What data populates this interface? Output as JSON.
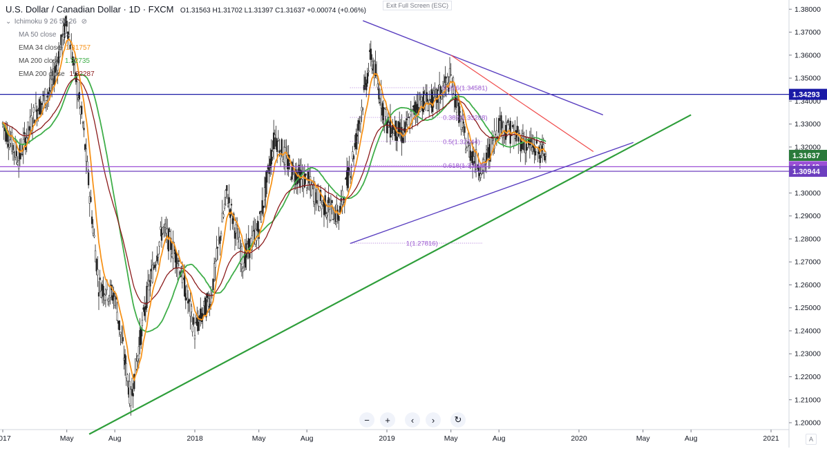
{
  "header": {
    "title": "U.S. Dollar / Canadian Dollar · 1D · FXCM",
    "ohlc": "O1.31563 H1.31702 L1.31397 C1.31637 +0.00074 (+0.06%)"
  },
  "indicators": {
    "ichimoku": "Ichimoku 9 26 52 26",
    "ma50": {
      "label": "MA  50 close",
      "value": ""
    },
    "ema34": {
      "label": "EMA 34 close",
      "value": "1.31757"
    },
    "ma200": {
      "label": "MA  200 close",
      "value": "1.32735"
    },
    "ema200": {
      "label": "EMA 200 close",
      "value": "1.32287"
    }
  },
  "exit_fullscreen": "Exit Full Screen (ESC)",
  "nav_buttons": {
    "zoom_out": "−",
    "zoom_in": "+",
    "back": "‹",
    "forward": "›",
    "reset": "↻"
  },
  "auto_label": "A",
  "colors": {
    "ema34": "#f7931a",
    "ma200": "#3fae49",
    "ema200": "#8b1a1a",
    "candle": "#222222",
    "fib": "#9b59d0",
    "trend_purple": "#5a3fc0",
    "trend_green": "#2e9e3a",
    "trend_red": "#f04a4a",
    "hline_blue": "#1a1aa6",
    "hline_purple": "#9b4fd6",
    "price_green": "#2a7a3a",
    "price_purple": "#6d3fbf"
  },
  "chart_data": {
    "type": "candlestick",
    "symbol": "USDCAD",
    "x_ticks": [
      "2017",
      "May",
      "Aug",
      "2018",
      "May",
      "Aug",
      "2019",
      "May",
      "Aug",
      "2020",
      "May",
      "Aug",
      "2021"
    ],
    "y_ticks": [
      "1.20000",
      "1.21000",
      "1.22000",
      "1.23000",
      "1.24000",
      "1.25000",
      "1.26000",
      "1.27000",
      "1.28000",
      "1.29000",
      "1.30000",
      "1.31000",
      "1.32000",
      "1.33000",
      "1.34000",
      "1.35000",
      "1.36000",
      "1.37000",
      "1.38000"
    ],
    "ylim": [
      1.197,
      1.384
    ],
    "price_path": [
      [
        "2017-01",
        1.33
      ],
      [
        "2017-02",
        1.315
      ],
      [
        "2017-03",
        1.335
      ],
      [
        "2017-04",
        1.345
      ],
      [
        "2017-05",
        1.375
      ],
      [
        "2017-06",
        1.33
      ],
      [
        "2017-07",
        1.26
      ],
      [
        "2017-08",
        1.255
      ],
      [
        "2017-09",
        1.21
      ],
      [
        "2017-10",
        1.255
      ],
      [
        "2017-11",
        1.285
      ],
      [
        "2017-12",
        1.27
      ],
      [
        "2018-01",
        1.24
      ],
      [
        "2018-02",
        1.255
      ],
      [
        "2018-03",
        1.3
      ],
      [
        "2018-04",
        1.27
      ],
      [
        "2018-05",
        1.285
      ],
      [
        "2018-06",
        1.325
      ],
      [
        "2018-07",
        1.31
      ],
      [
        "2018-08",
        1.305
      ],
      [
        "2018-09",
        1.295
      ],
      [
        "2018-10",
        1.29
      ],
      [
        "2018-11",
        1.32
      ],
      [
        "2018-12",
        1.36
      ],
      [
        "2019-01",
        1.33
      ],
      [
        "2019-02",
        1.325
      ],
      [
        "2019-03",
        1.34
      ],
      [
        "2019-04",
        1.34
      ],
      [
        "2019-05",
        1.35
      ],
      [
        "2019-06",
        1.32
      ],
      [
        "2019-07",
        1.31
      ],
      [
        "2019-08",
        1.33
      ],
      [
        "2019-09",
        1.325
      ],
      [
        "2019-10",
        1.32
      ],
      [
        "2019-11",
        1.31637
      ]
    ],
    "horizontal_levels": [
      {
        "price": 1.34293,
        "label": "1.34293",
        "color": "#1a1aa6"
      },
      {
        "price": 1.31143,
        "label": "1.31143",
        "color": "#9b4fd6"
      },
      {
        "price": 1.30944,
        "label": "1.30944",
        "color": "#6d3fbf"
      }
    ],
    "last_price": {
      "price": 1.31637,
      "label": "1.31637"
    },
    "fib_levels": [
      {
        "ratio": "0.236",
        "price": 1.34581,
        "label": "0.236(1.34581)"
      },
      {
        "ratio": "0.382",
        "price": 1.33288,
        "label": "0.382(1.33288)"
      },
      {
        "ratio": "0.5",
        "price": 1.32244,
        "label": "0.5(1.32244)"
      },
      {
        "ratio": "0.618",
        "price": 1.31199,
        "label": "0.618(1.31199)"
      },
      {
        "ratio": "1",
        "price": 1.27816,
        "label": "1(1.27816)"
      }
    ]
  }
}
